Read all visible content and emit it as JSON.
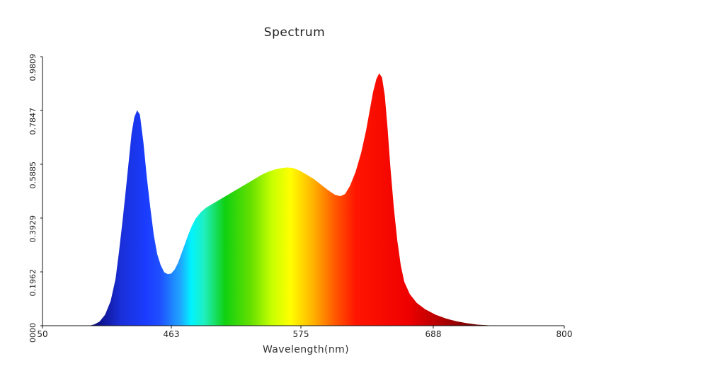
{
  "chart_data": {
    "type": "area",
    "title": "Spectrum",
    "xlabel": "Wavelength(nm)",
    "ylabel": "",
    "x_tick_labels": [
      "50",
      "463",
      "575",
      "688",
      "800"
    ],
    "y_tick_labels": [
      "0000",
      "0.1962",
      "0.3929",
      "0.5885",
      "0.7847",
      "0.9809"
    ],
    "xlim": [
      50,
      800
    ],
    "ylim": [
      0,
      0.9809
    ],
    "grid": false,
    "legend": "none",
    "series": [
      {
        "values": [
          [
            117,
            0.0
          ],
          [
            125,
            0.005
          ],
          [
            132,
            0.015
          ],
          [
            140,
            0.04
          ],
          [
            148,
            0.09
          ],
          [
            155,
            0.17
          ],
          [
            160,
            0.27
          ],
          [
            165,
            0.38
          ],
          [
            170,
            0.5
          ],
          [
            174,
            0.6
          ],
          [
            178,
            0.7
          ],
          [
            182,
            0.76
          ],
          [
            186,
            0.785
          ],
          [
            190,
            0.77
          ],
          [
            195,
            0.67
          ],
          [
            200,
            0.54
          ],
          [
            205,
            0.43
          ],
          [
            210,
            0.33
          ],
          [
            215,
            0.26
          ],
          [
            220,
            0.22
          ],
          [
            225,
            0.195
          ],
          [
            230,
            0.188
          ],
          [
            235,
            0.19
          ],
          [
            240,
            0.205
          ],
          [
            245,
            0.23
          ],
          [
            250,
            0.265
          ],
          [
            255,
            0.3
          ],
          [
            260,
            0.335
          ],
          [
            265,
            0.365
          ],
          [
            270,
            0.39
          ],
          [
            278,
            0.415
          ],
          [
            285,
            0.43
          ],
          [
            295,
            0.445
          ],
          [
            305,
            0.46
          ],
          [
            315,
            0.475
          ],
          [
            325,
            0.49
          ],
          [
            335,
            0.505
          ],
          [
            345,
            0.52
          ],
          [
            355,
            0.535
          ],
          [
            365,
            0.55
          ],
          [
            375,
            0.562
          ],
          [
            385,
            0.57
          ],
          [
            395,
            0.575
          ],
          [
            402,
            0.577
          ],
          [
            410,
            0.575
          ],
          [
            420,
            0.565
          ],
          [
            430,
            0.55
          ],
          [
            440,
            0.535
          ],
          [
            450,
            0.515
          ],
          [
            460,
            0.495
          ],
          [
            470,
            0.478
          ],
          [
            478,
            0.472
          ],
          [
            485,
            0.48
          ],
          [
            492,
            0.51
          ],
          [
            500,
            0.56
          ],
          [
            508,
            0.63
          ],
          [
            515,
            0.71
          ],
          [
            520,
            0.78
          ],
          [
            525,
            0.85
          ],
          [
            530,
            0.9
          ],
          [
            534,
            0.92
          ],
          [
            538,
            0.905
          ],
          [
            542,
            0.84
          ],
          [
            546,
            0.72
          ],
          [
            550,
            0.58
          ],
          [
            555,
            0.43
          ],
          [
            560,
            0.31
          ],
          [
            565,
            0.22
          ],
          [
            570,
            0.16
          ],
          [
            578,
            0.115
          ],
          [
            588,
            0.083
          ],
          [
            600,
            0.06
          ],
          [
            615,
            0.04
          ],
          [
            630,
            0.026
          ],
          [
            645,
            0.016
          ],
          [
            660,
            0.009
          ],
          [
            675,
            0.004
          ],
          [
            690,
            0.0015
          ],
          [
            700,
            0.0
          ]
        ]
      }
    ]
  }
}
